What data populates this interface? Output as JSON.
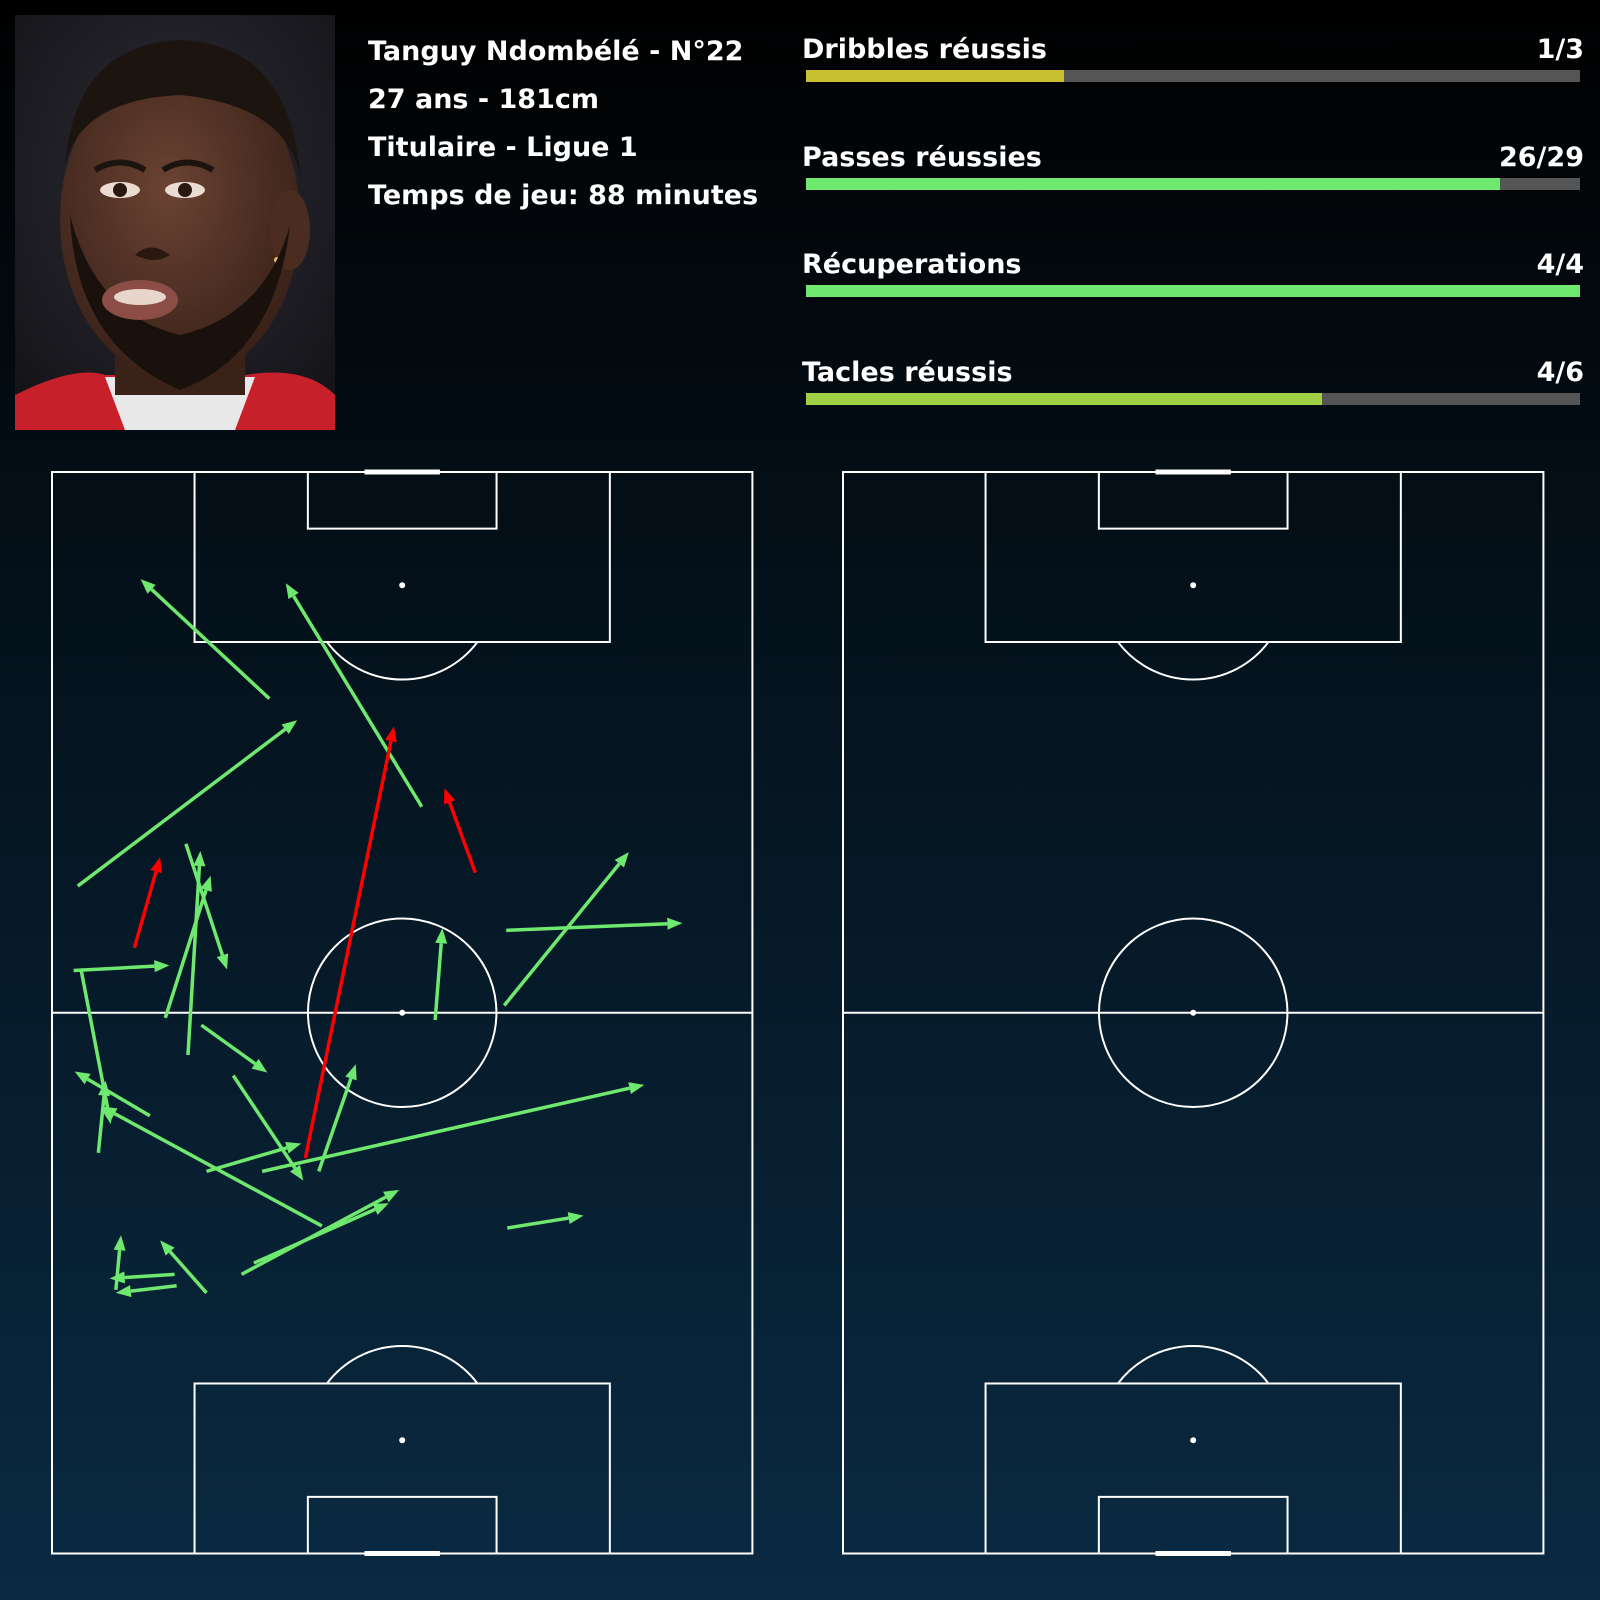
{
  "player": {
    "name_line": "Tanguy Ndombélé - N°22",
    "age_height": "27 ans - 181cm",
    "status_league": "Titulaire - Ligue 1",
    "playing_time": "Temps de jeu: 88 minutes",
    "photo_icon": "player-portrait"
  },
  "stats": [
    {
      "label": "Dribbles réussis",
      "value": "1/3",
      "success": 1,
      "total": 3,
      "color": "#c8c132"
    },
    {
      "label": "Passes réussies",
      "value": "26/29",
      "success": 26,
      "total": 29,
      "color": "#6fe86f"
    },
    {
      "label": "Récuperations",
      "value": "4/4",
      "success": 4,
      "total": 4,
      "color": "#6fe86f"
    },
    {
      "label": "Tacles réussis",
      "value": "4/6",
      "success": 4,
      "total": 6,
      "color": "#a0d045"
    }
  ],
  "colors": {
    "successful_pass": "#6fe86f",
    "failed_pass": "#ff0000",
    "pitch_lines": "#ffffff",
    "bar_track": "#555555"
  },
  "chart_data": [
    {
      "type": "scatter",
      "description": "pass map, coordinates in pitch units (x 0-68 width, y 0-105 length, attacking upward)",
      "successful": [
        [
          21.1,
          83.0,
          8.6,
          94.6
        ],
        [
          35.9,
          72.5,
          22.7,
          94.2
        ],
        [
          2.5,
          64.8,
          23.8,
          80.9
        ],
        [
          2.1,
          56.6,
          11.4,
          57.1
        ],
        [
          13.0,
          68.9,
          17.0,
          56.7
        ],
        [
          11.0,
          52.0,
          15.4,
          65.8
        ],
        [
          13.2,
          48.4,
          14.4,
          68.2
        ],
        [
          37.2,
          51.8,
          37.9,
          60.7
        ],
        [
          43.9,
          53.2,
          56.0,
          68.1
        ],
        [
          44.1,
          60.5,
          61.2,
          61.2
        ],
        [
          14.5,
          51.3,
          20.9,
          46.7
        ],
        [
          2.8,
          56.8,
          5.7,
          41.7
        ],
        [
          9.5,
          42.5,
          2.2,
          46.8
        ],
        [
          4.5,
          38.9,
          5.2,
          45.9
        ],
        [
          17.6,
          46.4,
          24.4,
          36.2
        ],
        [
          15.0,
          37.1,
          24.2,
          39.8
        ],
        [
          25.9,
          37.1,
          29.5,
          47.5
        ],
        [
          20.4,
          37.1,
          57.5,
          45.5
        ],
        [
          26.2,
          31.8,
          4.8,
          43.4
        ],
        [
          18.4,
          27.1,
          33.7,
          35.3
        ],
        [
          19.6,
          28.2,
          32.7,
          34.0
        ],
        [
          44.2,
          31.6,
          51.6,
          32.8
        ],
        [
          15.0,
          25.3,
          10.5,
          30.4
        ],
        [
          12.1,
          26.0,
          6.2,
          25.3
        ],
        [
          11.9,
          27.1,
          5.6,
          26.7
        ],
        [
          6.2,
          25.6,
          6.7,
          30.9
        ]
      ],
      "failed": [
        [
          8.0,
          58.8,
          10.5,
          67.6
        ],
        [
          24.6,
          38.4,
          33.2,
          80.3
        ],
        [
          41.1,
          66.1,
          38.1,
          74.3
        ]
      ]
    },
    {
      "type": "heatmap",
      "description": "touch density grid, 25 columns x 25 rows, row 0 at top, 0 = none, 1 low ... 7 high",
      "grid": [
        "0000000000000000000000000",
        "0000000000000000000000000",
        "0000000000000000000000000",
        "0000000000000000000000000",
        "0000000000000000000000000",
        "0000000000000000000000000",
        "0000000000000000000000000",
        "0000000000000000000000000",
        "0000000000000000000000000",
        "0000000000000000000000000",
        "0000000000000000000000000",
        "0000000000000000000000000",
        "0000000000000000000000000",
        "0000000000000000000000000",
        "0000000000000000000000000",
        "0000000000000000000000000",
        "0000000000000000000000000",
        "0000000000000000000000000",
        "0000000000000000000000000",
        "0000000000000000000000000",
        "0000000000000000000000000",
        "0000000000000000000000000",
        "0000000000000000000000000",
        "0000000000000000000000000",
        "0000000000000000000000000"
      ]
    }
  ]
}
